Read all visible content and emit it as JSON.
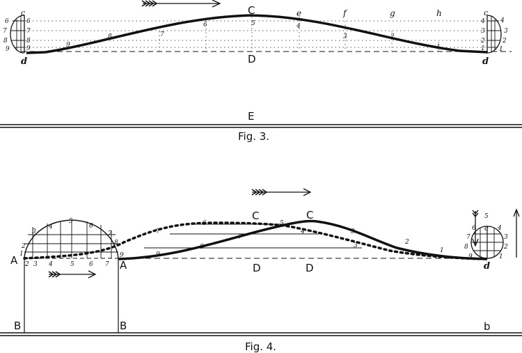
{
  "fig3": {
    "caption": "Fig. 3.",
    "labels": {
      "c_left": "c",
      "d_left": "d",
      "C": "C",
      "D": "D",
      "E": "E",
      "e": "e",
      "f": "f",
      "g": "g",
      "h": "h",
      "c_right": "c",
      "d_right": "d"
    },
    "left_semi_outer": [
      "6",
      "7",
      "8",
      "9"
    ],
    "left_semi_inner": [
      "6",
      "7",
      "8",
      "9"
    ],
    "right_semi_inner": [
      "4",
      "3",
      "2",
      "1"
    ],
    "right_semi_outer": [
      "4",
      "3",
      "2",
      "1"
    ],
    "wave_numbers": [
      "9",
      "8",
      "7",
      "6",
      "5",
      "4",
      "3",
      "2",
      "1"
    ]
  },
  "fig4": {
    "caption": "Fig. 4.",
    "labels": {
      "A_left": "A",
      "A_right": "A",
      "B_left": "B",
      "B_mid": "B",
      "b_right": "b",
      "C_dotted": "C",
      "C_solid": "C",
      "D_dotted": "D",
      "D_solid": "D",
      "c_right": "c",
      "d_right": "d"
    },
    "dome_top": [
      "3",
      "4",
      "5",
      "6",
      "7"
    ],
    "dome_side": [
      "2",
      "1",
      "8",
      "9"
    ],
    "dome_base": [
      "2",
      "3",
      "4",
      "5",
      "6",
      "7"
    ],
    "dotted_numbers": [
      "7",
      "6",
      "5"
    ],
    "solid_numbers": [
      "9",
      "8",
      "7",
      "4",
      "3",
      "3",
      "2",
      "1"
    ],
    "circle_left": [
      "6",
      "7",
      "8",
      "9"
    ],
    "circle_right": [
      "5",
      "4",
      "3",
      "2",
      "1"
    ],
    "circle_top": "c"
  }
}
